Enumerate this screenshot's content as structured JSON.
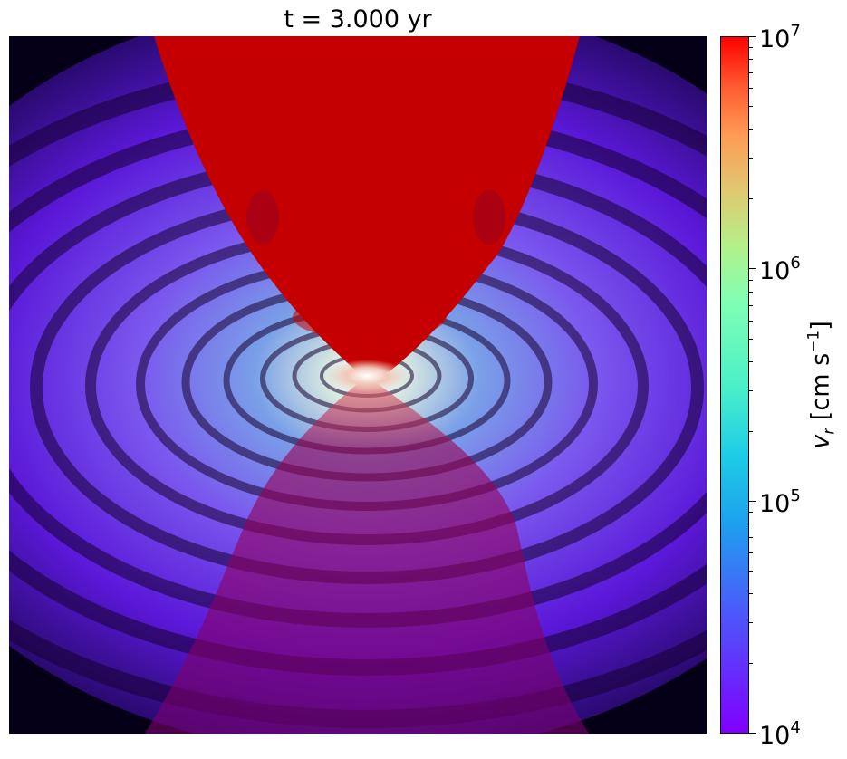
{
  "figure": {
    "title": "t = 3.000 yr",
    "colorbar": {
      "label_var": "v",
      "label_sub": "r",
      "label_units_prefix": "[cm s",
      "label_units_exp": "−1",
      "label_units_suffix": "]",
      "scale": "log",
      "range": [
        10000,
        10000000
      ],
      "colormap": "rainbow",
      "ticks": [
        {
          "base": "10",
          "exp": "7"
        },
        {
          "base": "10",
          "exp": "6"
        },
        {
          "base": "10",
          "exp": "5"
        },
        {
          "base": "10",
          "exp": "4"
        }
      ]
    },
    "colors": {
      "jet": "#c80000",
      "disk": "#6a2ff0",
      "background": "#050018"
    }
  }
}
